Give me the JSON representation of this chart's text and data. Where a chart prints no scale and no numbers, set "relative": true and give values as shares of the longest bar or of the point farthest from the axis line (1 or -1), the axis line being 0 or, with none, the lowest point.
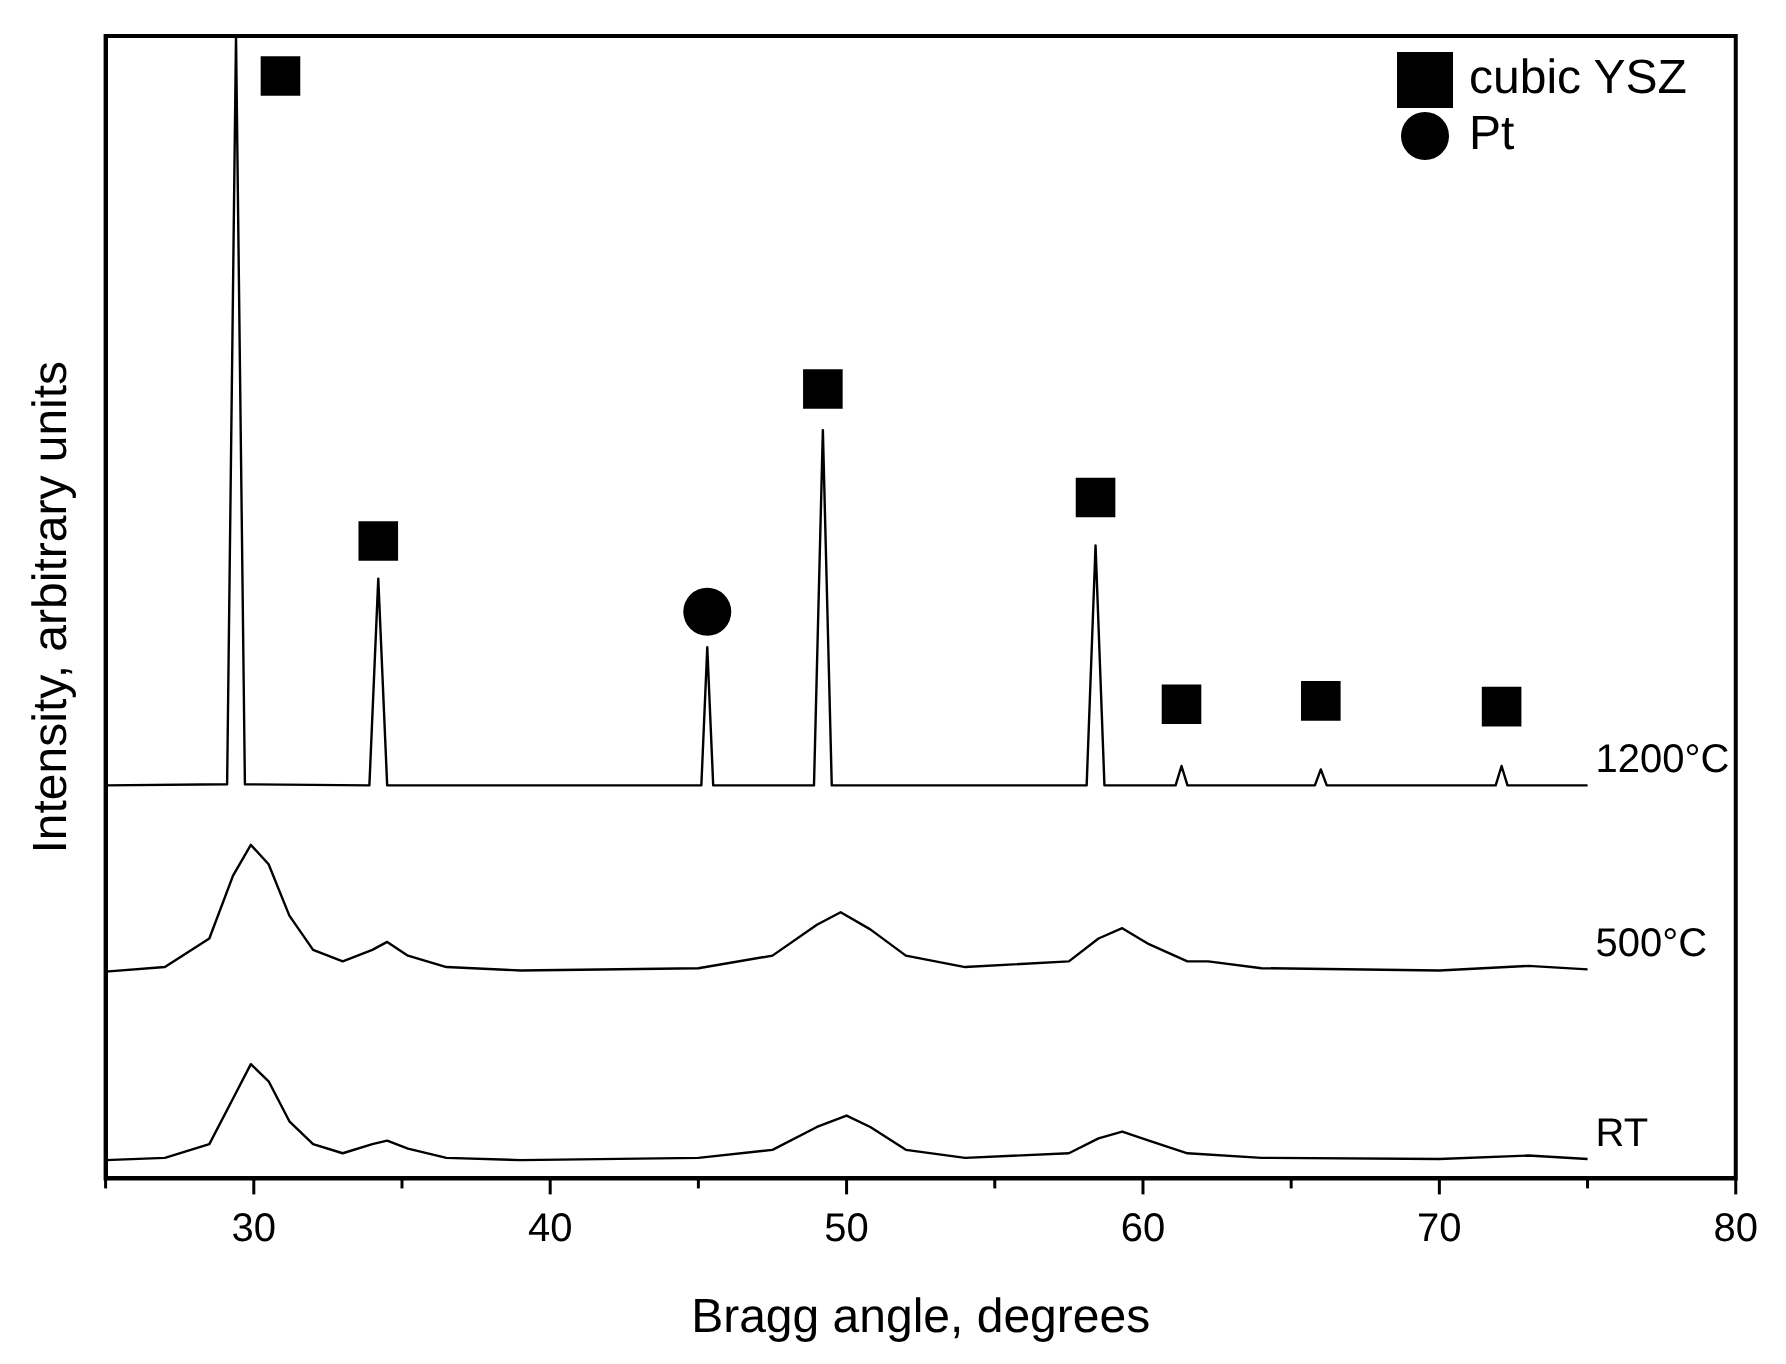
{
  "chart_data": {
    "type": "line",
    "relative": true,
    "xlabel": "Bragg angle, degrees",
    "ylabel": "Intensity, arbitrary units",
    "xlim": [
      25,
      80
    ],
    "xticks": [
      {
        "value": 25,
        "label": null
      },
      30,
      {
        "value": 35,
        "label": null
      },
      40,
      {
        "value": 45,
        "label": null
      },
      50,
      {
        "value": 55,
        "label": null
      },
      60,
      {
        "value": 65,
        "label": null
      },
      70,
      {
        "value": 75,
        "label": null
      },
      80
    ],
    "legend": "top right",
    "grid": false,
    "series": [
      {
        "name": "RT",
        "color": "#000000",
        "marker": "none",
        "x": [
          25,
          27,
          28.5,
          29.3,
          29.9,
          30.5,
          31.2,
          32,
          33,
          34,
          34.5,
          35.2,
          36.5,
          39,
          45,
          47.5,
          49,
          50,
          50.8,
          52,
          54,
          57.5,
          58.5,
          59.3,
          60.2,
          61.5,
          64,
          70,
          73,
          75
        ],
        "values": [
          0.016,
          0.018,
          0.03,
          0.07,
          0.1,
          0.085,
          0.05,
          0.03,
          0.022,
          0.03,
          0.033,
          0.026,
          0.018,
          0.016,
          0.018,
          0.025,
          0.045,
          0.055,
          0.045,
          0.025,
          0.018,
          0.022,
          0.035,
          0.041,
          0.033,
          0.022,
          0.018,
          0.017,
          0.02,
          0.017
        ]
      },
      {
        "name": "500°C",
        "color": "#000000",
        "marker": "none",
        "x": [
          25,
          27,
          28.5,
          29.3,
          29.9,
          30.5,
          31.2,
          32,
          33,
          34,
          34.5,
          35.2,
          36.5,
          39,
          45,
          47.5,
          49,
          49.8,
          50.8,
          52,
          54,
          57.5,
          58.5,
          59.3,
          60.2,
          61.5,
          62.2,
          64,
          70,
          73,
          75
        ],
        "values": [
          0.181,
          0.185,
          0.21,
          0.265,
          0.292,
          0.275,
          0.23,
          0.2,
          0.19,
          0.2,
          0.207,
          0.195,
          0.185,
          0.182,
          0.184,
          0.195,
          0.222,
          0.233,
          0.218,
          0.195,
          0.185,
          0.19,
          0.21,
          0.219,
          0.205,
          0.19,
          0.19,
          0.184,
          0.182,
          0.186,
          0.183
        ]
      },
      {
        "name": "1200°C",
        "color": "#000000",
        "marker": "none",
        "x": [
          25,
          29.1,
          29.4,
          29.7,
          33.9,
          34.2,
          34.5,
          45.1,
          45.3,
          45.5,
          48.9,
          49.2,
          49.5,
          58.1,
          58.4,
          58.7,
          61.1,
          61.3,
          61.5,
          65.8,
          66,
          66.2,
          71.9,
          72.1,
          72.3,
          75
        ],
        "values": [
          0.344,
          0.345,
          1.0,
          0.345,
          0.344,
          0.525,
          0.344,
          0.344,
          0.465,
          0.344,
          0.344,
          0.655,
          0.344,
          0.344,
          0.554,
          0.344,
          0.344,
          0.361,
          0.344,
          0.344,
          0.358,
          0.344,
          0.344,
          0.361,
          0.344,
          0.344
        ]
      },
      {
        "name": "cubic YSZ",
        "type": "scatter",
        "color": "#000000",
        "marker": "square",
        "x": [
          30.9,
          34.2,
          49.2,
          58.4,
          61.3,
          66,
          72.1
        ],
        "values": [
          0.965,
          0.558,
          0.691,
          0.596,
          0.415,
          0.418,
          0.413
        ]
      },
      {
        "name": "Pt",
        "type": "scatter",
        "color": "#000000",
        "marker": "circle",
        "x": [
          45.3
        ],
        "values": [
          0.496
        ]
      }
    ]
  }
}
